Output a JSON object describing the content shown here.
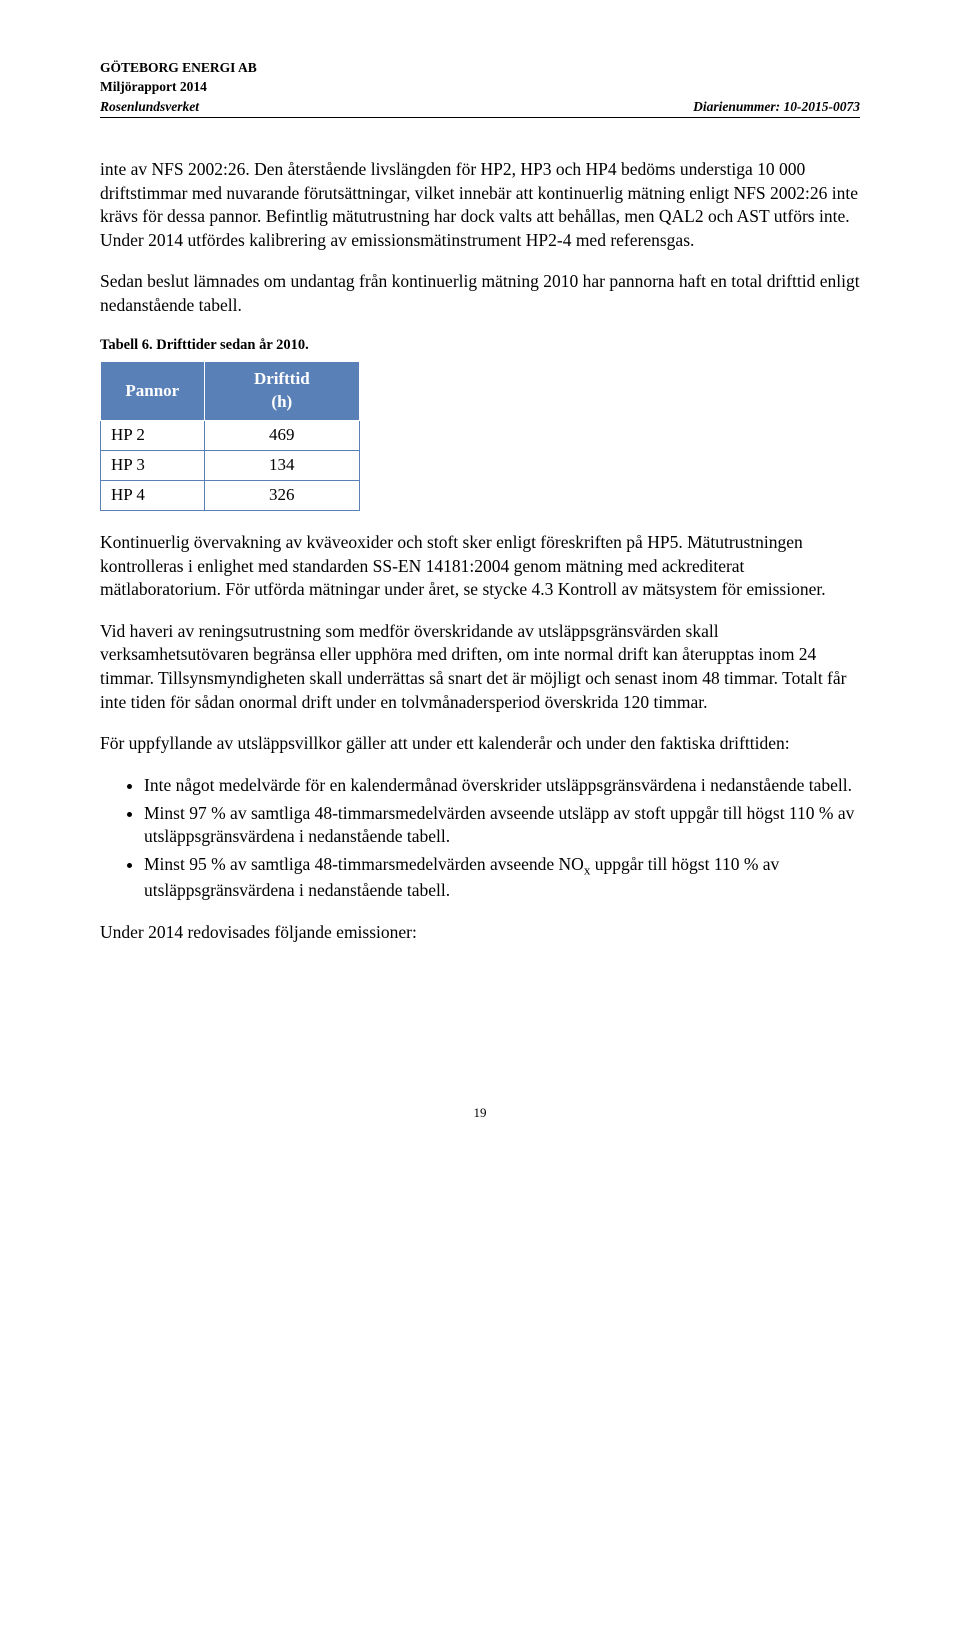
{
  "header": {
    "company": "GÖTEBORG ENERGI AB",
    "report": "Miljörapport 2014",
    "facility": "Rosenlundsverket",
    "diarie": "Diarienummer: 10-2015-0073"
  },
  "paragraphs": {
    "p1": "inte av NFS 2002:26. Den återstående livslängden för HP2, HP3 och HP4 bedöms understiga 10 000 driftstimmar med nuvarande förutsättningar, vilket innebär att kontinuerlig mätning enligt NFS 2002:26 inte krävs för dessa pannor. Befintlig mätutrustning har dock valts att behållas, men QAL2 och AST utförs inte. Under 2014 utfördes kalibrering av emissionsmätinstrument HP2-4 med referensgas.",
    "p2": "Sedan beslut lämnades om undantag från kontinuerlig mätning 2010 har pannorna haft en total drifttid enligt nedanstående tabell.",
    "p3": "Kontinuerlig övervakning av kväveoxider och stoft sker enligt föreskriften på HP5. Mätutrustningen kontrolleras i enlighet med standarden SS-EN 14181:2004 genom mätning med ackrediterat mätlaboratorium. För utförda mätningar under året, se stycke 4.3 Kontroll av mätsystem för emissioner.",
    "p4": "Vid haveri av reningsutrustning som medför överskridande av utsläppsgränsvärden skall verksamhetsutövaren begränsa eller upphöra med driften, om inte normal drift kan återupptas inom 24 timmar. Tillsynsmyndigheten skall underrättas så snart det är möjligt och senast inom 48 timmar. Totalt får inte tiden för sådan onormal drift under en tolvmånadersperiod överskrida 120 timmar.",
    "p5": "För uppfyllande av utsläppsvillkor gäller att under ett kalenderår och under den faktiska drifttiden:",
    "p6": "Under 2014 redovisades följande emissioner:"
  },
  "table": {
    "caption": "Tabell 6. Drifttider sedan år 2010.",
    "columns": [
      "Pannor",
      "Drifttid (h)"
    ],
    "col0": "Pannor",
    "col1_line1": "Drifttid",
    "col1_line2": "(h)",
    "header_bg": "#5a80b8",
    "header_fg": "#ffffff",
    "border_color": "#5a80b8",
    "rows": [
      {
        "pannor": "HP 2",
        "drifttid": "469"
      },
      {
        "pannor": "HP 3",
        "drifttid": "134"
      },
      {
        "pannor": "HP 4",
        "drifttid": "326"
      }
    ]
  },
  "bullets": {
    "b1": "Inte något medelvärde för en kalendermånad överskrider utsläppsgränsvärdena i nedanstående tabell.",
    "b2": "Minst 97 % av samtliga 48-timmarsmedelvärden avseende utsläpp av stoft uppgår till högst 110 % av utsläppsgränsvärdena i nedanstående tabell.",
    "b3_pre": "Minst 95 % av samtliga 48-timmarsmedelvärden avseende NO",
    "b3_sub": "x",
    "b3_post": " uppgår till högst 110 % av utsläppsgränsvärdena i nedanstående tabell."
  },
  "footer": {
    "page": "19"
  },
  "style": {
    "body_font": "Times New Roman",
    "body_fontsize": 17.5,
    "header_fontsize": 13.5,
    "caption_fontsize": 14.5,
    "footer_fontsize": 13,
    "background_color": "#ffffff",
    "text_color": "#000000"
  }
}
